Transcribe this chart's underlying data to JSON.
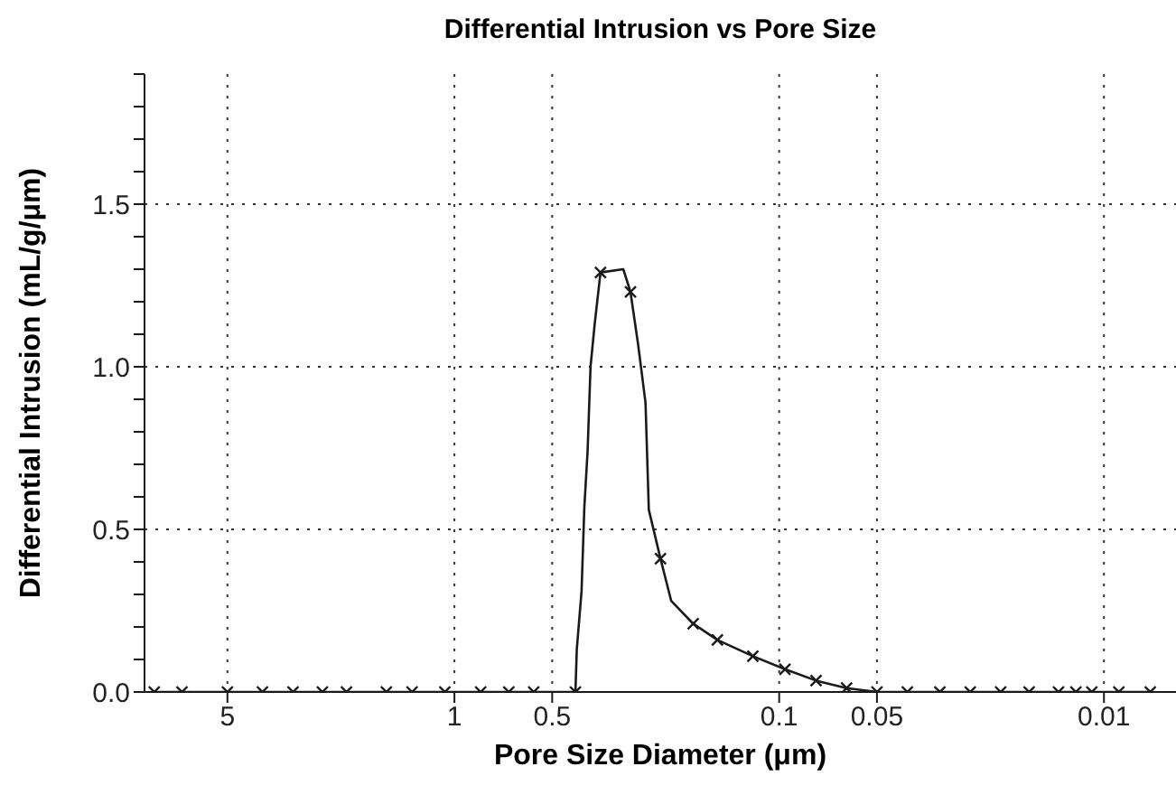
{
  "chart_data": {
    "type": "line",
    "title": "Differential Intrusion vs Pore Size",
    "xlabel": "Pore Size Diameter (μm)",
    "ylabel": "Differential Intrusion (mL/g/μm)",
    "log": "x",
    "xlim": [
      9,
      0.006
    ],
    "xticks": [
      5,
      1,
      0.5,
      0.1,
      0.05,
      0.01
    ],
    "ylim": [
      0,
      1.9
    ],
    "yticks": [
      {
        "value": 0,
        "label": "0.0"
      },
      {
        "value": 0.1,
        "label": null
      },
      {
        "value": 0.2,
        "label": null
      },
      {
        "value": 0.3,
        "label": null
      },
      {
        "value": 0.4,
        "label": null
      },
      {
        "value": 0.5,
        "label": "0.5"
      },
      {
        "value": 0.6,
        "label": null
      },
      {
        "value": 0.7,
        "label": null
      },
      {
        "value": 0.8,
        "label": null
      },
      {
        "value": 0.9,
        "label": null
      },
      {
        "value": 1,
        "label": "1.0"
      },
      {
        "value": 1.1,
        "label": null
      },
      {
        "value": 1.2,
        "label": null
      },
      {
        "value": 1.3,
        "label": null
      },
      {
        "value": 1.4,
        "label": null
      },
      {
        "value": 1.5,
        "label": "1.5"
      },
      {
        "value": 1.6,
        "label": null
      },
      {
        "value": 1.7,
        "label": null
      },
      {
        "value": 1.8,
        "label": null
      },
      {
        "value": 1.9,
        "label": null
      }
    ],
    "grid": true,
    "series": [
      {
        "color": "#1a1a1a",
        "marker": "none",
        "line_style": "solid",
        "x": [
          8.4,
          6.9,
          5,
          3.9,
          3.14,
          2.55,
          2.15,
          1.62,
          1.35,
          1.07,
          0.83,
          0.68,
          0.57,
          0.424,
          0.42,
          0.406,
          0.398,
          0.389,
          0.381,
          0.37,
          0.355,
          0.302,
          0.287,
          0.272,
          0.258,
          0.252,
          0.232,
          0.215,
          0.184,
          0.155,
          0.1205,
          0.096,
          0.077,
          0.062,
          0.05,
          0.0403,
          0.032,
          0.0258,
          0.0208,
          0.017,
          0.0138,
          0.0122,
          0.0109,
          0.009,
          0.0072
        ],
        "values": [
          0,
          0,
          0,
          0,
          0,
          0,
          0,
          0,
          0,
          0,
          0,
          0,
          0,
          0,
          0.13,
          0.31,
          0.57,
          0.74,
          1.0,
          1.13,
          1.29,
          1.3,
          1.23,
          1.07,
          0.89,
          0.56,
          0.41,
          0.28,
          0.21,
          0.16,
          0.11,
          0.07,
          0.035,
          0.012,
          0,
          0,
          0,
          0,
          0,
          0,
          0,
          0,
          0,
          0,
          0
        ]
      },
      {
        "type": "scatter",
        "color": "#1a1a1a",
        "marker": "cross",
        "x": [
          8.4,
          6.9,
          5,
          3.9,
          3.14,
          2.55,
          2.15,
          1.62,
          1.35,
          1.07,
          0.83,
          0.68,
          0.57,
          0.424,
          0.355,
          0.287,
          0.232,
          0.184,
          0.155,
          0.1205,
          0.096,
          0.077,
          0.062,
          0.05,
          0.0403,
          0.032,
          0.0258,
          0.0208,
          0.017,
          0.0138,
          0.0122,
          0.0109,
          0.009,
          0.0072
        ],
        "values": [
          0,
          0,
          0,
          0,
          0,
          0,
          0,
          0,
          0,
          0,
          0,
          0,
          0,
          0,
          1.29,
          1.23,
          0.41,
          0.21,
          0.16,
          0.11,
          0.07,
          0.035,
          0.012,
          0,
          0,
          0,
          0,
          0,
          0,
          0,
          0,
          0,
          0,
          0
        ]
      }
    ]
  }
}
